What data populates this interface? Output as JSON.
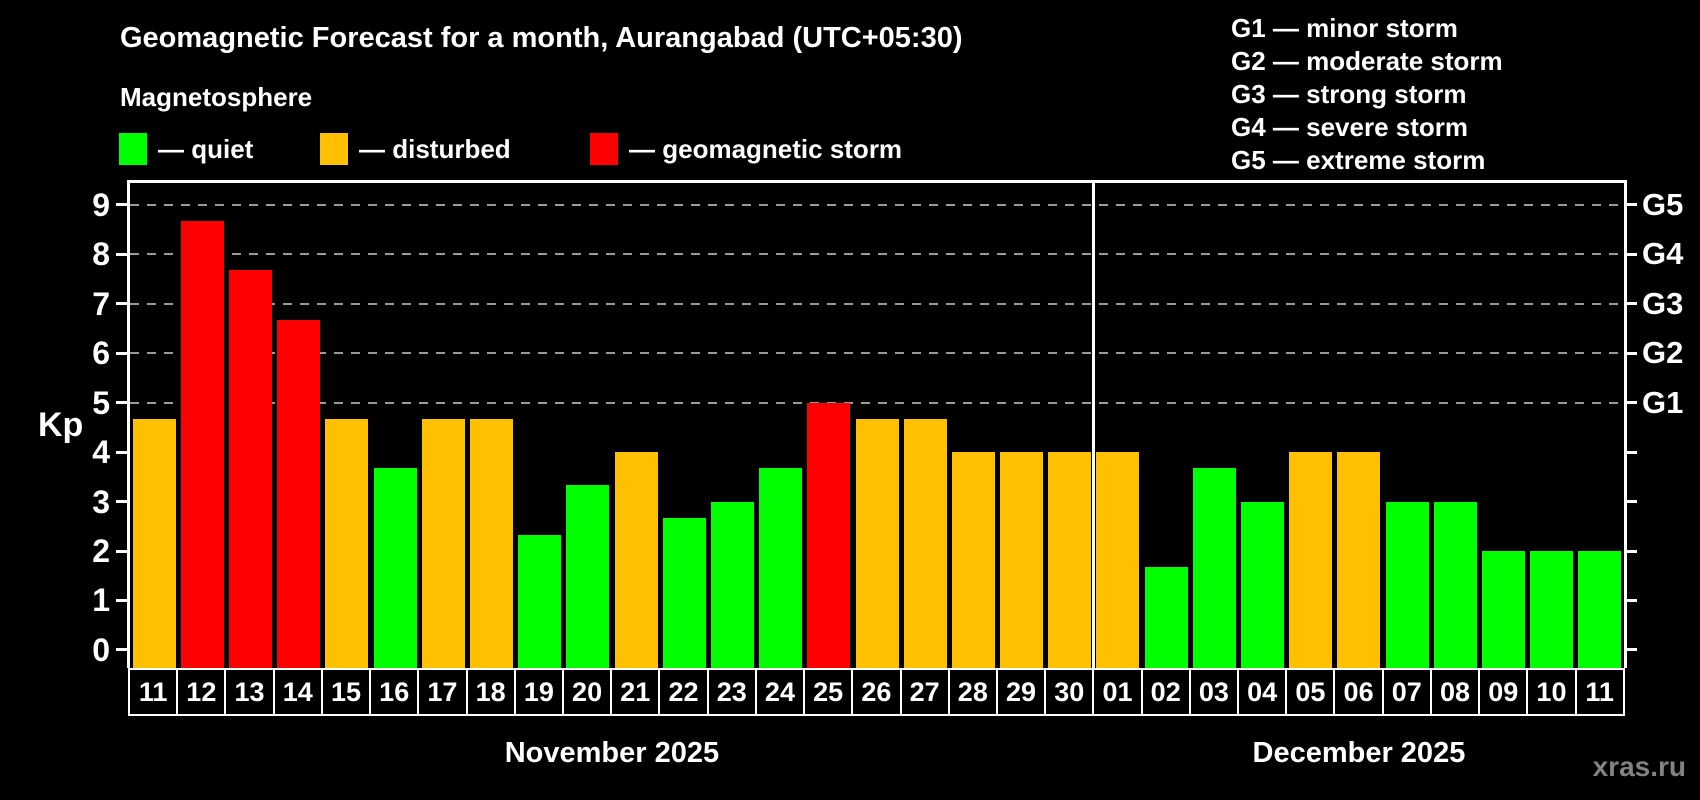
{
  "header": {
    "title": "Geomagnetic Forecast for a month, Aurangabad (UTC+05:30)",
    "subtitle": "Magnetosphere",
    "legend": [
      {
        "key": "quiet",
        "label": "— quiet"
      },
      {
        "key": "disturbed",
        "label": "— disturbed"
      },
      {
        "key": "storm",
        "label": "— geomagnetic storm"
      }
    ]
  },
  "g_scale_legend": [
    {
      "text": "G1 — minor storm"
    },
    {
      "text": "G2 — moderate storm"
    },
    {
      "text": "G3 — strong storm"
    },
    {
      "text": "G4 — severe storm"
    },
    {
      "text": "G5 — extreme storm"
    }
  ],
  "colors": {
    "quiet": "#00ff00",
    "disturbed": "#ffc000",
    "storm": "#ff0000",
    "grid": "#999999",
    "axis": "#ffffff",
    "watermark": "#828282"
  },
  "chart_data": {
    "type": "bar",
    "title": "Geomagnetic Forecast for a month, Aurangabad (UTC+05:30)",
    "ylabel": "Kp",
    "ylim": [
      -0.364,
      9.436
    ],
    "y_ticks": [
      0,
      1,
      2,
      3,
      4,
      5,
      6,
      7,
      8,
      9
    ],
    "gridlines": [
      5,
      6,
      7,
      8,
      9
    ],
    "right_axis_labels": [
      {
        "value": 5,
        "label": "G1"
      },
      {
        "value": 6,
        "label": "G2"
      },
      {
        "value": 7,
        "label": "G3"
      },
      {
        "value": 8,
        "label": "G4"
      },
      {
        "value": 9,
        "label": "G5"
      }
    ],
    "months": [
      {
        "label": "November 2025",
        "days": [
          {
            "day": "11",
            "kp": 4.67,
            "status": "disturbed"
          },
          {
            "day": "12",
            "kp": 8.67,
            "status": "storm"
          },
          {
            "day": "13",
            "kp": 7.67,
            "status": "storm"
          },
          {
            "day": "14",
            "kp": 6.67,
            "status": "storm"
          },
          {
            "day": "15",
            "kp": 4.67,
            "status": "disturbed"
          },
          {
            "day": "16",
            "kp": 3.67,
            "status": "quiet"
          },
          {
            "day": "17",
            "kp": 4.67,
            "status": "disturbed"
          },
          {
            "day": "18",
            "kp": 4.67,
            "status": "disturbed"
          },
          {
            "day": "19",
            "kp": 2.33,
            "status": "quiet"
          },
          {
            "day": "20",
            "kp": 3.33,
            "status": "quiet"
          },
          {
            "day": "21",
            "kp": 4.0,
            "status": "disturbed"
          },
          {
            "day": "22",
            "kp": 2.67,
            "status": "quiet"
          },
          {
            "day": "23",
            "kp": 3.0,
            "status": "quiet"
          },
          {
            "day": "24",
            "kp": 3.67,
            "status": "quiet"
          },
          {
            "day": "25",
            "kp": 5.0,
            "status": "storm"
          },
          {
            "day": "26",
            "kp": 4.67,
            "status": "disturbed"
          },
          {
            "day": "27",
            "kp": 4.67,
            "status": "disturbed"
          },
          {
            "day": "28",
            "kp": 4.0,
            "status": "disturbed"
          },
          {
            "day": "29",
            "kp": 4.0,
            "status": "disturbed"
          },
          {
            "day": "30",
            "kp": 4.0,
            "status": "disturbed"
          }
        ]
      },
      {
        "label": "December 2025",
        "days": [
          {
            "day": "01",
            "kp": 4.0,
            "status": "disturbed"
          },
          {
            "day": "02",
            "kp": 1.67,
            "status": "quiet"
          },
          {
            "day": "03",
            "kp": 3.67,
            "status": "quiet"
          },
          {
            "day": "04",
            "kp": 3.0,
            "status": "quiet"
          },
          {
            "day": "05",
            "kp": 4.0,
            "status": "disturbed"
          },
          {
            "day": "06",
            "kp": 4.0,
            "status": "disturbed"
          },
          {
            "day": "07",
            "kp": 3.0,
            "status": "quiet"
          },
          {
            "day": "08",
            "kp": 3.0,
            "status": "quiet"
          },
          {
            "day": "09",
            "kp": 2.0,
            "status": "quiet"
          },
          {
            "day": "10",
            "kp": 2.0,
            "status": "quiet"
          },
          {
            "day": "11",
            "kp": 2.0,
            "status": "quiet"
          }
        ]
      }
    ]
  },
  "watermark": "xras.ru"
}
